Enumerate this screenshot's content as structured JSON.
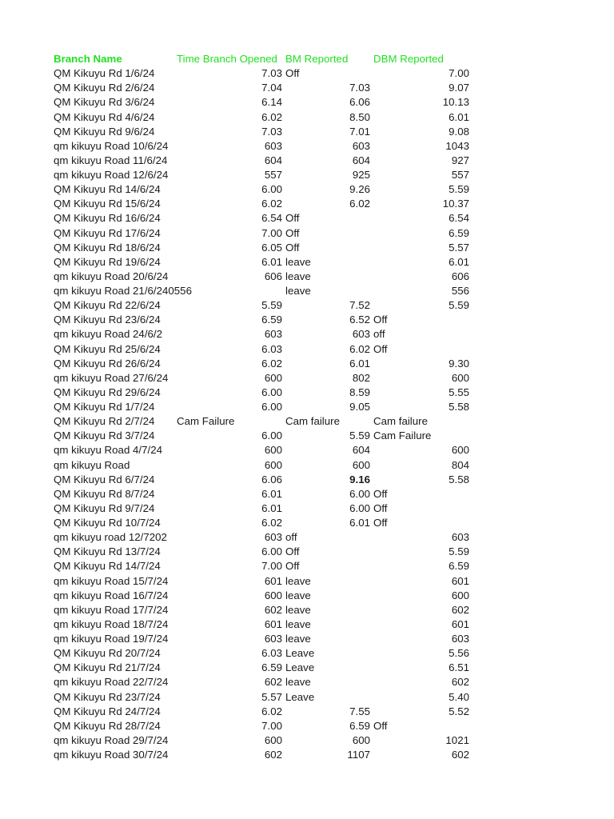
{
  "header": [
    "Branch Name",
    "Time Branch Opened",
    "BM Reported",
    "DBM Reported"
  ],
  "header_color": "#22e022",
  "rows": [
    [
      "QM Kikuyu Rd 1/6/24",
      "7.03",
      "Off",
      "7.00"
    ],
    [
      "QM Kikuyu Rd 2/6/24",
      "7.04",
      "7.03",
      "9.07"
    ],
    [
      "QM Kikuyu Rd 3/6/24",
      "6.14",
      "6.06",
      "10.13"
    ],
    [
      "QM Kikuyu Rd 4/6/24",
      "6.02",
      "8.50",
      "6.01"
    ],
    [
      "QM Kikuyu Rd 9/6/24",
      "7.03",
      "7.01",
      "9.08"
    ],
    [
      "qm kikuyu Road 10/6/24",
      "603",
      "603",
      "1043"
    ],
    [
      "qm kikuyu Road 11/6/24",
      "604",
      "604",
      "927"
    ],
    [
      "qm kikuyu Road 12/6/24",
      "557",
      "925",
      "557"
    ],
    [
      "QM Kikuyu Rd 14/6/24",
      "6.00",
      "9.26",
      "5.59"
    ],
    [
      "QM Kikuyu Rd 15/6/24",
      "6.02",
      "6.02",
      "10.37"
    ],
    [
      "QM Kikuyu Rd  16/6/24",
      "6.54",
      "Off",
      "6.54"
    ],
    [
      "QM Kikuyu Rd 17/6/24",
      "7.00",
      "Off",
      "6.59"
    ],
    [
      "QM Kikuyu Rd 18/6/24",
      "6.05",
      "Off",
      "5.57"
    ],
    [
      "QM Kikuyu Rd 19/6/24",
      "6.01",
      "leave",
      "6.01"
    ],
    [
      "qm kikuyu Road 20/6/24",
      "606",
      "leave",
      "606"
    ],
    [
      "qm kikuyu Road 21/6/240556",
      "",
      "leave",
      "556"
    ],
    [
      "QM Kikuyu Rd 22/6/24",
      "5.59",
      "7.52",
      "5.59"
    ],
    [
      "QM Kikuyu Rd 23/6/24",
      "6.59",
      "6.52",
      "Off"
    ],
    [
      "qm kikuyu Road  24/6/2",
      "603",
      "603",
      "off"
    ],
    [
      "QM Kikuyu Rd 25/6/24",
      "6.03",
      "6.02",
      "Off"
    ],
    [
      "QM Kikuyu  Rd 26/6/24",
      "6.02",
      "6.01",
      "9.30"
    ],
    [
      "qm kikuyu Road 27/6/24",
      "600",
      "802",
      "600"
    ],
    [
      "QM Kikuyu Rd 29/6/24",
      "6.00",
      "8.59",
      "5.55"
    ],
    [
      "QM Kikuyu Rd 1/7/24",
      "6.00",
      "9.05",
      "5.58"
    ],
    [
      "QM Kikuyu Rd 2/7/24",
      "Cam Failure",
      "Cam failure",
      "Cam failure"
    ],
    [
      "QM Kikuyu Rd 3/7/24",
      "6.00",
      "5.59",
      "Cam Failure"
    ],
    [
      "qm kikuyu Road 4/7/24",
      "600",
      "604",
      "600"
    ],
    [
      "qm kikuyu Road",
      "600",
      "600",
      "804"
    ],
    [
      "QM Kikuyu Rd 6/7/24",
      "6.06",
      "9.16",
      "5.58"
    ],
    [
      "QM Kikuyu Rd 8/7/24",
      "6.01",
      "6.00",
      "Off"
    ],
    [
      "QM Kikuyu Rd 9/7/24",
      "6.01",
      "6.00",
      "Off"
    ],
    [
      "QM Kikuyu Rd 10/7/24",
      "6.02",
      "6.01",
      "Off"
    ],
    [
      "qm kikuyu road 12/7202",
      "603",
      "off",
      "603"
    ],
    [
      "QM Kikuyu Rd 13/7/24",
      "6.00",
      "Off",
      "5.59"
    ],
    [
      "QM Kikuyu Rd 14/7/24",
      "7.00",
      "Off",
      "6.59"
    ],
    [
      "qm kikuyu Road 15/7/24",
      "601",
      "leave",
      "601"
    ],
    [
      "qm kikuyu Road 16/7/24",
      "600",
      "leave",
      "600"
    ],
    [
      "qm kikuyu Road 17/7/24",
      "602",
      "leave",
      "602"
    ],
    [
      "qm kikuyu Road 18/7/24",
      "601",
      "leave",
      "601"
    ],
    [
      "qm kikuyu Road 19/7/24",
      "603",
      "leave",
      "603"
    ],
    [
      "QM Kikuyu Rd 20/7/24",
      "6.03",
      "Leave",
      "5.56"
    ],
    [
      "QM Kikuyu Rd 21/7/24",
      "6.59",
      "Leave",
      "6.51"
    ],
    [
      "qm kikuyu Road 22/7/24",
      "602",
      "leave",
      "602"
    ],
    [
      "QM Kikuyu Rd 23/7/24",
      "5.57",
      "Leave",
      "5.40"
    ],
    [
      "QM Kikuyu Rd 24/7/24",
      "6.02",
      "7.55",
      "5.52"
    ],
    [
      "QM Kikuyu Rd 28/7/24",
      "7.00",
      "6.59",
      "Off"
    ],
    [
      "qm kikuyu Road 29/7/24",
      "600",
      "600",
      "1021"
    ],
    [
      "qm kikuyu Road 30/7/24",
      "602",
      "1107",
      "602"
    ]
  ],
  "bold_cells": [
    [
      28,
      2
    ]
  ]
}
